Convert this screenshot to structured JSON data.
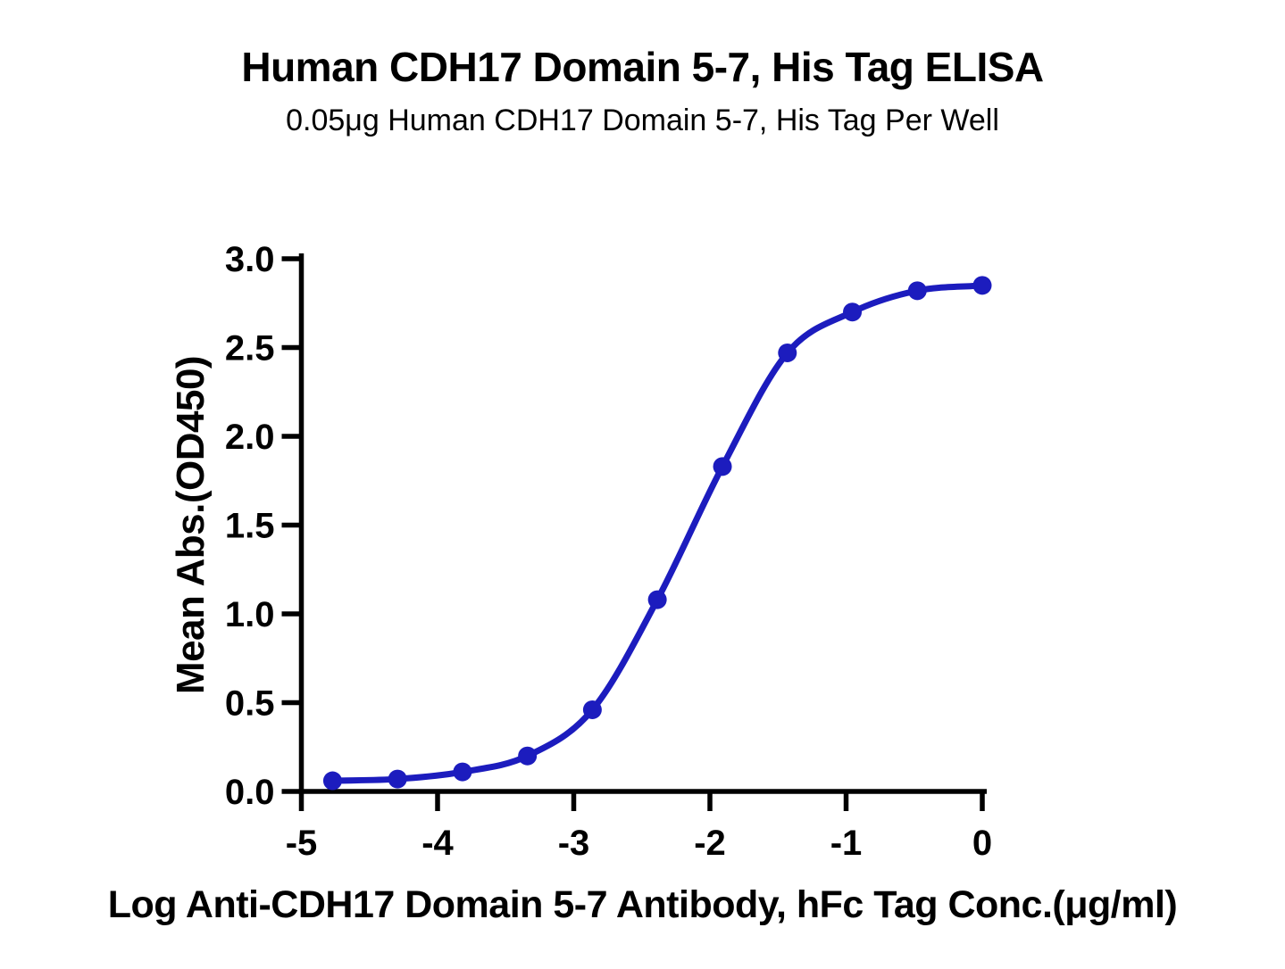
{
  "chart_data": {
    "type": "line",
    "title": "Human CDH17 Domain 5-7, His Tag ELISA",
    "subtitle": "0.05μg Human CDH17 Domain 5-7, His Tag Per Well",
    "xlabel": "Log Anti-CDH17 Domain 5-7 Antibody, hFc Tag Conc.(μg/ml)",
    "ylabel": "Mean Abs.(OD450)",
    "xlim": [
      -5,
      0
    ],
    "ylim": [
      0,
      3
    ],
    "xticks": [
      -5,
      -4,
      -3,
      -2,
      -1,
      0
    ],
    "xtick_labels": [
      "-5",
      "-4",
      "-3",
      "-2",
      "-1",
      "0"
    ],
    "yticks": [
      0,
      0.5,
      1,
      1.5,
      2,
      2.5,
      3
    ],
    "ytick_labels": [
      "0.0",
      "0.5",
      "1.0",
      "1.5",
      "2.0",
      "2.5",
      "3.0"
    ],
    "grid": false,
    "legend_position": "none",
    "marker": "circle",
    "curve_color": "#1c1cbe",
    "axis_color": "#000000",
    "series": [
      {
        "name": "Anti-CDH17 Domain 5-7 Antibody, hFc Tag",
        "x": [
          -4.771,
          -4.294,
          -3.817,
          -3.34,
          -2.863,
          -2.386,
          -1.908,
          -1.431,
          -0.954,
          -0.477,
          0
        ],
        "y": [
          0.06,
          0.07,
          0.11,
          0.2,
          0.46,
          1.08,
          1.83,
          2.47,
          2.7,
          2.82,
          2.85
        ]
      }
    ]
  }
}
